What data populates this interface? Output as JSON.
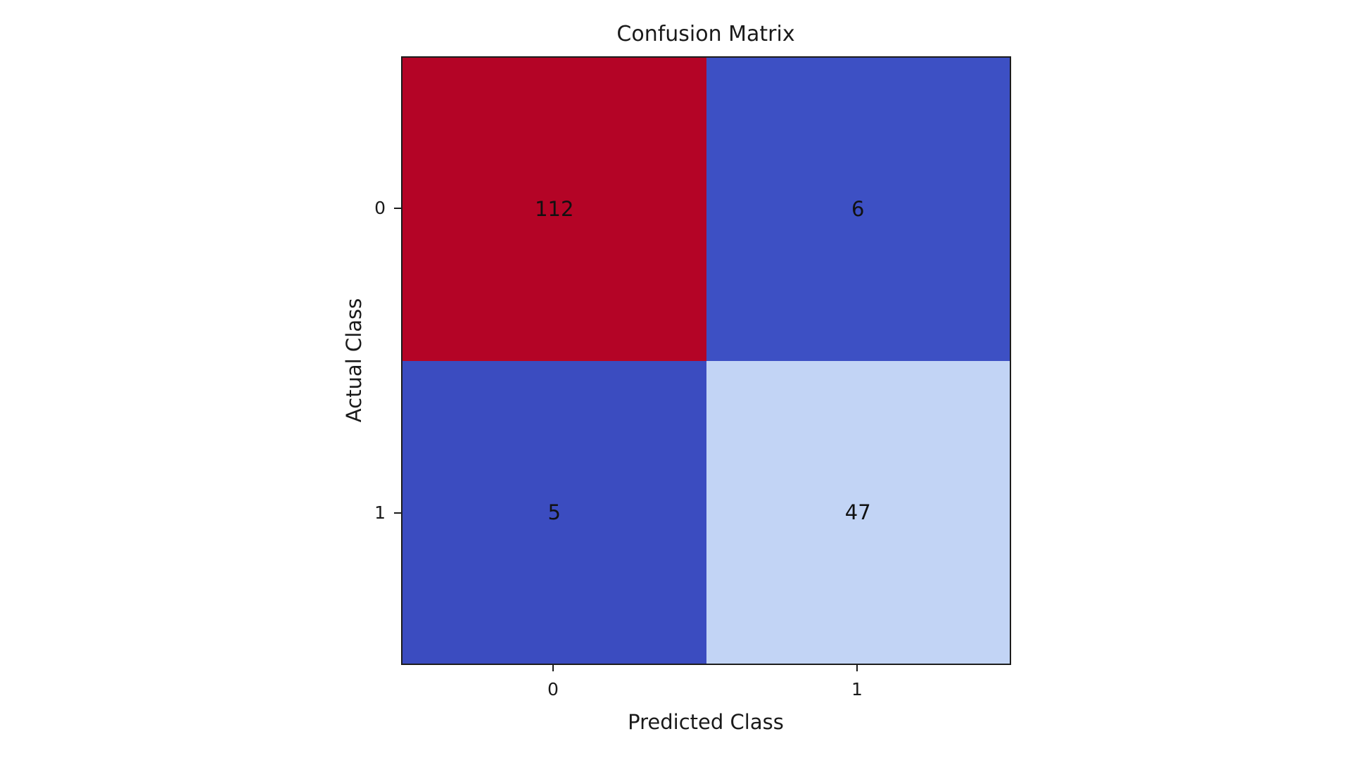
{
  "figure": {
    "title": "Confusion Matrix",
    "x_axis_label": "Predicted Class",
    "y_axis_label": "Actual Class"
  },
  "chart_data": {
    "type": "heatmap",
    "title": "Confusion Matrix",
    "xlabel": "Predicted Class",
    "ylabel": "Actual Class",
    "x_tick_labels": [
      "0",
      "1"
    ],
    "y_tick_labels": [
      "0",
      "1"
    ],
    "matrix": [
      [
        112,
        6
      ],
      [
        5,
        47
      ]
    ],
    "value_min": 5,
    "value_max": 112,
    "colormap": "coolwarm",
    "grid": "off",
    "legend": "none",
    "cells": [
      {
        "actual": "0",
        "predicted": "0",
        "value": "112",
        "color": "#b40426"
      },
      {
        "actual": "0",
        "predicted": "1",
        "value": "6",
        "color": "#3d50c4"
      },
      {
        "actual": "1",
        "predicted": "0",
        "value": "5",
        "color": "#3b4cc0"
      },
      {
        "actual": "1",
        "predicted": "1",
        "value": "47",
        "color": "#c2d4f5"
      }
    ],
    "annotation_color": "#111111",
    "spine_color": "#1c1c1c",
    "background_color": "#ffffff"
  }
}
